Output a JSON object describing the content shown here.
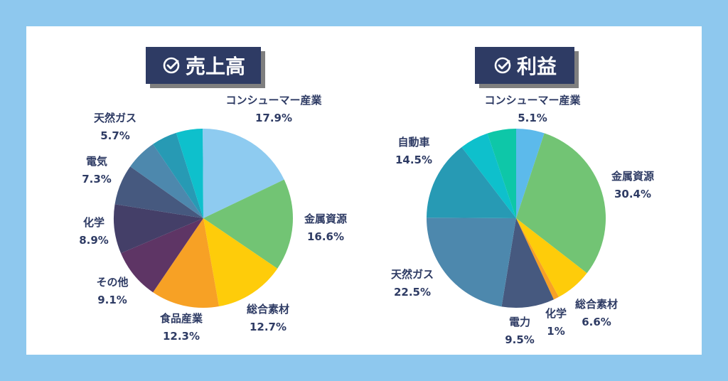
{
  "chart_data": [
    {
      "type": "pie",
      "title": "売上高",
      "categories": [
        "コンシューマー産業",
        "金属資源",
        "総合素材",
        "食品産業",
        "その他",
        "化学",
        "電気",
        "天然ガス"
      ],
      "values": [
        17.9,
        16.6,
        12.7,
        12.3,
        9.1,
        8.9,
        7.3,
        5.7
      ],
      "value_labels": [
        "17.9%",
        "16.6%",
        "12.7%",
        "12.3%",
        "9.1%",
        "8.9%",
        "7.3%",
        "5.7%"
      ],
      "colors": [
        "#8ecbf0",
        "#72c474",
        "#fecc0a",
        "#f7a125",
        "#5e3565",
        "#443f68",
        "#46597f",
        "#4d88ad",
        "#279ab4",
        "#0ec0cc"
      ],
      "extra_unlabeled_values": [
        4.6,
        4.8
      ]
    },
    {
      "type": "pie",
      "title": "利益",
      "categories": [
        "コンシューマー産業",
        "金属資源",
        "総合素材",
        "化学",
        "電力",
        "天然ガス",
        "自動車"
      ],
      "values": [
        5.1,
        30.4,
        6.6,
        1,
        9.5,
        22.5,
        14.5
      ],
      "value_labels": [
        "5.1%",
        "30.4%",
        "6.6%",
        "1%",
        "9.5%",
        "22.5%",
        "14.5%"
      ],
      "colors": [
        "#5cbaeb",
        "#72c474",
        "#fecc0a",
        "#f7a125",
        "#46597f",
        "#4d88ad",
        "#279ab4",
        "#0ec0cc",
        "#0ec7a8"
      ]
    }
  ]
}
